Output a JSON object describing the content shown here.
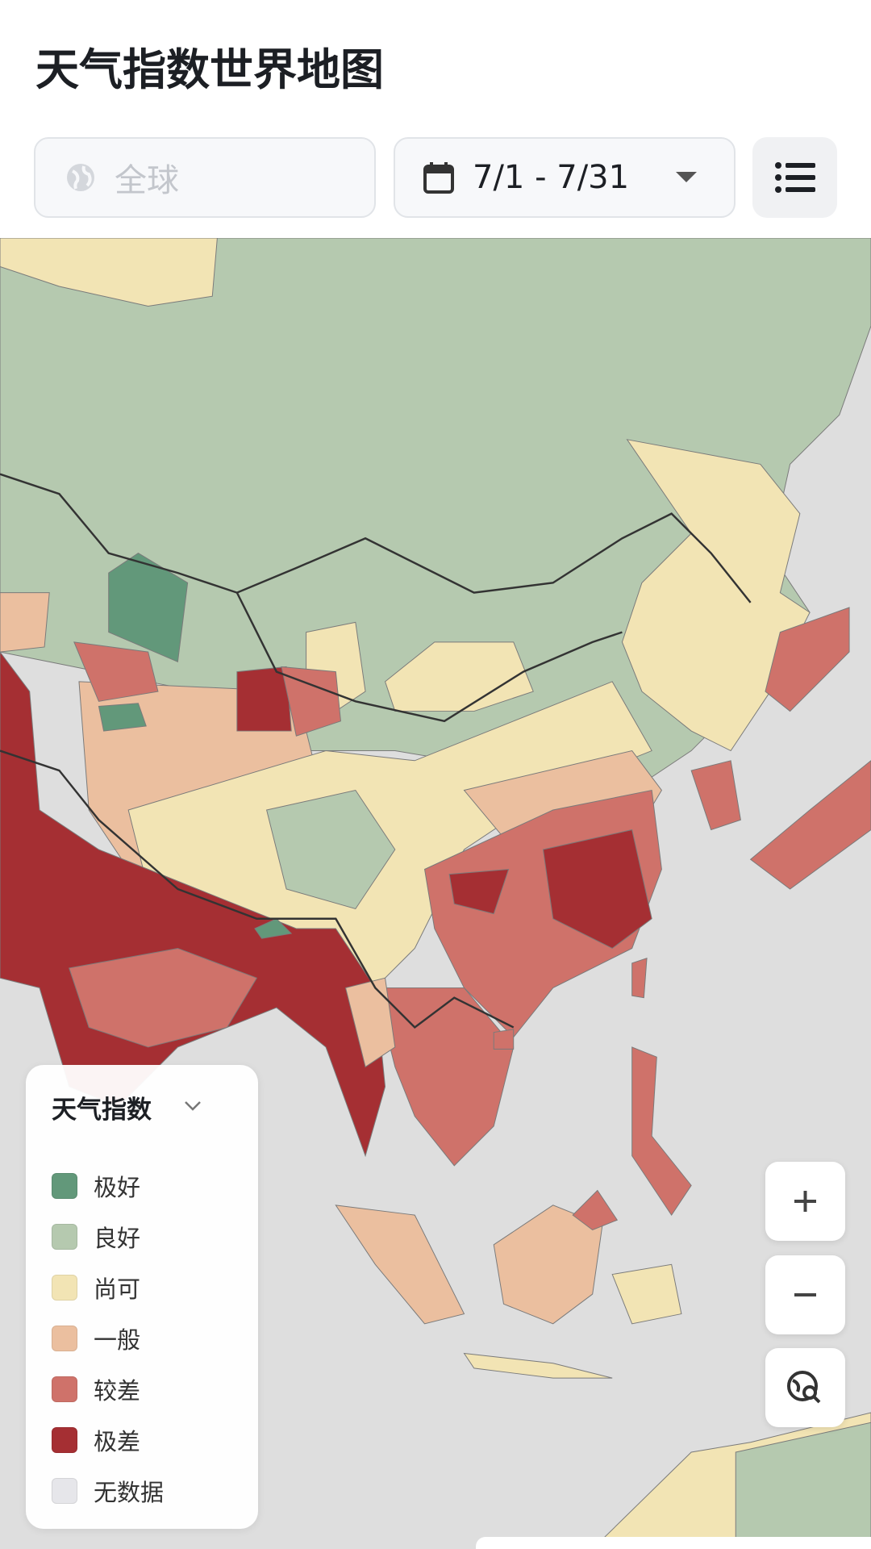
{
  "header": {
    "title": "天气指数世界地图"
  },
  "controls": {
    "region_placeholder": "全球",
    "date_range": "7/1 - 7/31"
  },
  "legend": {
    "title": "天气指数",
    "items": [
      {
        "label": "极好",
        "color": "#62987a"
      },
      {
        "label": "良好",
        "color": "#b5c9af"
      },
      {
        "label": "尚可",
        "color": "#f2e4b4"
      },
      {
        "label": "一般",
        "color": "#ebbf9f"
      },
      {
        "label": "较差",
        "color": "#cf726a"
      },
      {
        "label": "极差",
        "color": "#a52f33"
      },
      {
        "label": "无数据",
        "color": "#e6e6ea"
      }
    ]
  }
}
